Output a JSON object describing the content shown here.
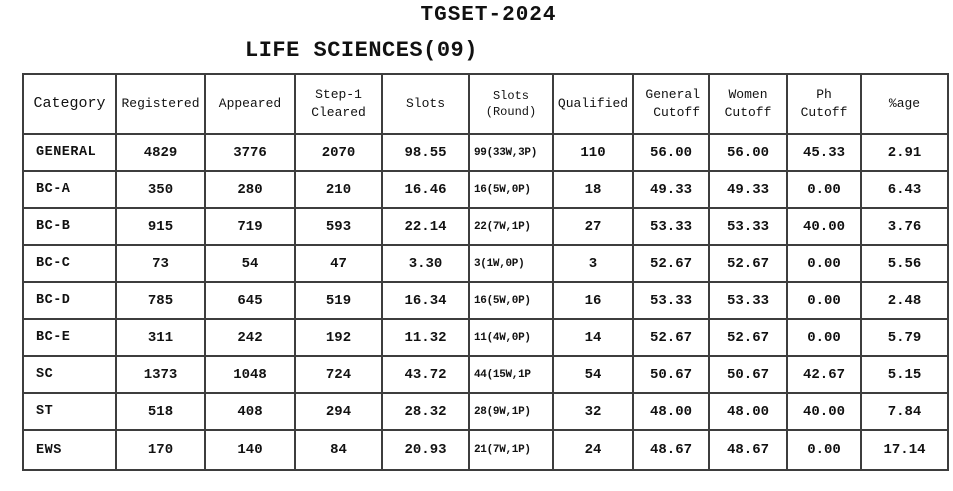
{
  "page": {
    "title": "TGSET-2024",
    "subtitle": "LIFE SCIENCES(09)"
  },
  "table": {
    "columns": [
      {
        "key": "category",
        "label": "Category"
      },
      {
        "key": "registered",
        "label": "Registered"
      },
      {
        "key": "appeared",
        "label": "Appeared"
      },
      {
        "key": "step1_cleared",
        "label": "Step-1\nCleared"
      },
      {
        "key": "slots",
        "label": "Slots"
      },
      {
        "key": "slots_round",
        "label": "Slots\n(Round)"
      },
      {
        "key": "qualified",
        "label": "Qualified"
      },
      {
        "key": "general_cutoff",
        "label": "General\nCutoff"
      },
      {
        "key": "women_cutoff",
        "label": "Women\nCutoff"
      },
      {
        "key": "ph_cutoff",
        "label": "Ph\nCutoff"
      },
      {
        "key": "pct_age",
        "label": "%age"
      }
    ],
    "rows": [
      [
        "GENERAL",
        "4829",
        "3776",
        "2070",
        "98.55",
        "99(33W,3P)",
        "110",
        "56.00",
        "56.00",
        "45.33",
        "2.91"
      ],
      [
        "BC-A",
        "350",
        "280",
        "210",
        "16.46",
        "16(5W,0P)",
        "18",
        "49.33",
        "49.33",
        "0.00",
        "6.43"
      ],
      [
        "BC-B",
        "915",
        "719",
        "593",
        "22.14",
        "22(7W,1P)",
        "27",
        "53.33",
        "53.33",
        "40.00",
        "3.76"
      ],
      [
        "BC-C",
        "73",
        "54",
        "47",
        "3.30",
        "3(1W,0P)",
        "3",
        "52.67",
        "52.67",
        "0.00",
        "5.56"
      ],
      [
        "BC-D",
        "785",
        "645",
        "519",
        "16.34",
        "16(5W,0P)",
        "16",
        "53.33",
        "53.33",
        "0.00",
        "2.48"
      ],
      [
        "BC-E",
        "311",
        "242",
        "192",
        "11.32",
        "11(4W,0P)",
        "14",
        "52.67",
        "52.67",
        "0.00",
        "5.79"
      ],
      [
        "SC",
        "1373",
        "1048",
        "724",
        "43.72",
        "44(15W,1P",
        "54",
        "50.67",
        "50.67",
        "42.67",
        "5.15"
      ],
      [
        "ST",
        "518",
        "408",
        "294",
        "28.32",
        "28(9W,1P)",
        "32",
        "48.00",
        "48.00",
        "40.00",
        "7.84"
      ],
      [
        "EWS",
        "170",
        "140",
        "84",
        "20.93",
        "21(7W,1P)",
        "24",
        "48.67",
        "48.67",
        "0.00",
        "17.14"
      ]
    ]
  }
}
